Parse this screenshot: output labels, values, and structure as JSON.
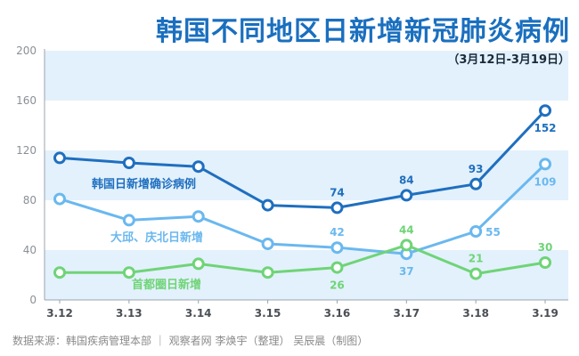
{
  "title": "韩国不同地区日新增新冠肺炎病例",
  "subtitle": "（3月12日-3月19日）",
  "source": "数据来源：韩国疾病管理本部 ｜ 观察者网 李焕宇（整理） 吴辰晨（制图）",
  "colors": {
    "band": "#e3f1fc",
    "axis": "#9aa4ae",
    "tick": "#8a9096",
    "xtick": "#4a4f55"
  },
  "chart_data": {
    "type": "line",
    "title": "韩国不同地区日新增新冠肺炎病例",
    "subtitle": "（3月12日-3月19日）",
    "x": [
      "3.12",
      "3.13",
      "3.14",
      "3.15",
      "3.16",
      "3.17",
      "3.18",
      "3.19"
    ],
    "ylim": [
      0,
      200
    ],
    "yticks": [
      0,
      40,
      80,
      120,
      160,
      200
    ],
    "grid": "alternating horizontal bands",
    "series": [
      {
        "name": "韩国日新增确诊病例",
        "color": "#1f6fbf",
        "values": [
          114,
          110,
          107,
          76,
          74,
          84,
          93,
          152
        ],
        "labels": [
          "",
          "",
          "",
          "",
          "74",
          "84",
          "93",
          "152"
        ]
      },
      {
        "name": "大邱、庆北日新增",
        "color": "#6ab8ef",
        "values": [
          81,
          64,
          67,
          45,
          42,
          37,
          55,
          109
        ],
        "labels": [
          "",
          "",
          "",
          "",
          "42",
          "37",
          "55",
          "109"
        ]
      },
      {
        "name": "首都圈日新增",
        "color": "#6fd477",
        "values": [
          22,
          22,
          29,
          22,
          26,
          44,
          21,
          30
        ],
        "labels": [
          "",
          "",
          "",
          "",
          "26",
          "44",
          "21",
          "30"
        ]
      }
    ]
  }
}
